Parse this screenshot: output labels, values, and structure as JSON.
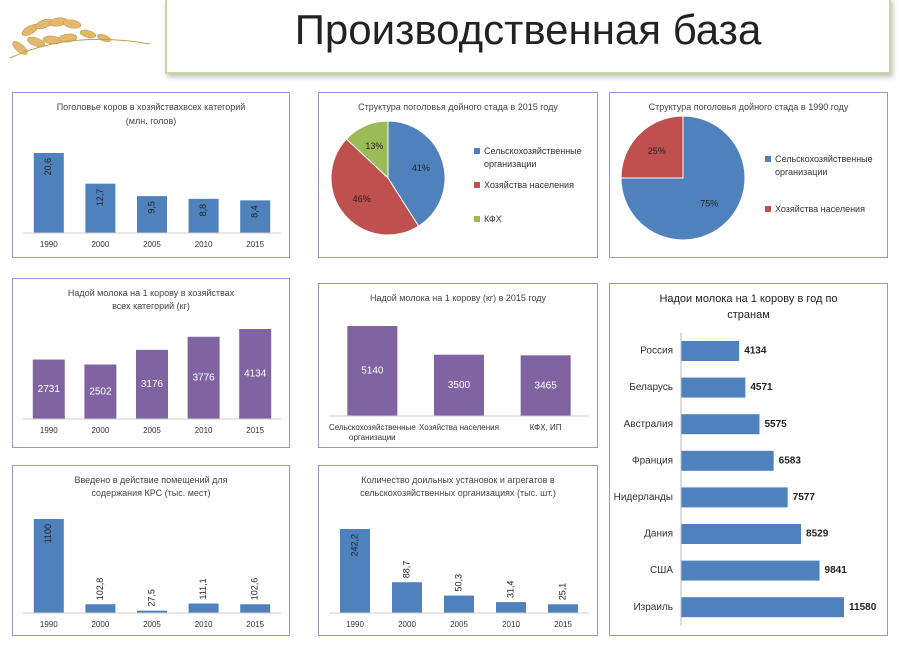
{
  "header": {
    "title": "Производственная база"
  },
  "chart_data": [
    {
      "type": "bar",
      "title": "Поголовье коров в хозяйствахвсех категорий",
      "subtitle": "(млн. голов)",
      "categories": [
        "1990",
        "2000",
        "2005",
        "2010",
        "2015"
      ],
      "values": [
        20.6,
        12.7,
        9.5,
        8.8,
        8.4
      ],
      "value_labels": [
        "20,6",
        "12,7",
        "9,5",
        "8,8",
        "8,4"
      ],
      "color": "#4f81bd"
    },
    {
      "type": "pie",
      "title": "Структура поголовья дойного стада в 2015 году",
      "categories": [
        "Сельскохозяйственные организации",
        "Хозяйства населения",
        "КФХ"
      ],
      "values": [
        41,
        46,
        13
      ],
      "value_labels": [
        "41%",
        "46%",
        "13%"
      ],
      "colors": [
        "#4f81bd",
        "#c0504d",
        "#9bbb59"
      ]
    },
    {
      "type": "pie",
      "title": "Структура поголовья дойного стада в 1990 году",
      "categories": [
        "Сельскохозяйственные организации",
        "Хозяйства населения"
      ],
      "values": [
        75,
        25
      ],
      "value_labels": [
        "75%",
        "25%"
      ],
      "colors": [
        "#4f81bd",
        "#c0504d"
      ]
    },
    {
      "type": "bar",
      "title": "Надой молока на 1 корову в хозяйствах всех категорий (кг)",
      "categories": [
        "1990",
        "2000",
        "2005",
        "2010",
        "2015"
      ],
      "values": [
        2731,
        2502,
        3176,
        3776,
        4134
      ],
      "color": "#8064a2"
    },
    {
      "type": "bar",
      "title": "Надой молока на 1 корову (кг) в 2015 году",
      "categories": [
        "Сельскохозяйственные организации",
        "Хозяйства населения",
        "КФХ, ИП"
      ],
      "values": [
        5140,
        3500,
        3465
      ],
      "color": "#8064a2"
    },
    {
      "type": "barh",
      "title": "Надои молока на 1 корову в год по странам",
      "categories": [
        "Россия",
        "Беларусь",
        "Австралия",
        "Франция",
        "Нидерланды",
        "Дания",
        "США",
        "Израиль"
      ],
      "values": [
        4134,
        4571,
        5575,
        6583,
        7577,
        8529,
        9841,
        11580
      ],
      "color": "#4f81bd"
    },
    {
      "type": "bar",
      "title": "Введено в действие помещений для содержания КРС (тыс. мест)",
      "categories": [
        "1990",
        "2000",
        "2005",
        "2010",
        "2015"
      ],
      "values": [
        1100,
        102.8,
        27.5,
        111.1,
        102.6
      ],
      "value_labels": [
        "1100",
        "102,8",
        "27,5",
        "111,1",
        "102,6"
      ],
      "color": "#4f81bd"
    },
    {
      "type": "bar",
      "title": "Количество доильных установок и агрегатов в сельскохозяйственных организациях (тыс. шт.)",
      "categories": [
        "1990",
        "2000",
        "2005",
        "2010",
        "2015"
      ],
      "values": [
        242.2,
        88.7,
        50.3,
        31.4,
        25.1
      ],
      "value_labels": [
        "242,2",
        "88,7",
        "50,3",
        "31,4",
        "25,1"
      ],
      "color": "#4f81bd"
    }
  ]
}
